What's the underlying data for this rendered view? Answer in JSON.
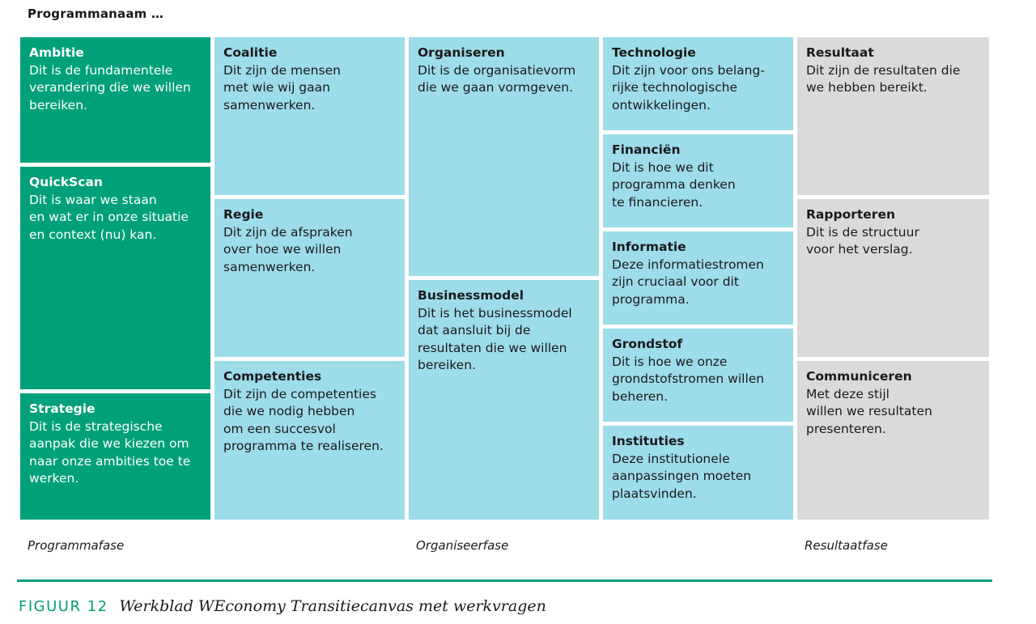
{
  "header": {
    "title": "Programmanaam …"
  },
  "cells": {
    "ambitie": {
      "title": "Ambitie",
      "body": "Dit is de fundamentele\nverandering die we willen\nbereiken."
    },
    "quickscan": {
      "title": "QuickScan",
      "body": "Dit is waar we staan\nen wat er in onze situatie\nen context (nu) kan."
    },
    "strategie": {
      "title": "Strategie",
      "body": "Dit is de strategische\naanpak die we kiezen om\nnaar onze ambities toe te\nwerken."
    },
    "coalitie": {
      "title": "Coalitie",
      "body": "Dit zijn de mensen\nmet wie wij gaan\nsamenwerken."
    },
    "regie": {
      "title": "Regie",
      "body": "Dit zijn de afspraken\nover hoe we willen\nsamenwerken."
    },
    "competenties": {
      "title": "Competenties",
      "body": "Dit zijn de competenties\ndie we nodig hebben\nom een succesvol\nprogramma te realiseren."
    },
    "organiseren": {
      "title": "Organiseren",
      "body": "Dit is de organisatievorm\ndie we gaan vormgeven."
    },
    "businessmodel": {
      "title": "Businessmodel",
      "body": "Dit is het businessmodel\ndat aansluit bij de\nresultaten die we willen\nbereiken."
    },
    "technologie": {
      "title": "Technologie",
      "body": "Dit zijn voor ons belang-\nrijke technologische\nontwikkelingen."
    },
    "financien": {
      "title": "Financiën",
      "body": "Dit is hoe we dit\nprogramma denken\nte financieren."
    },
    "informatie": {
      "title": "Informatie",
      "body": "Deze informatiestromen\nzijn cruciaal voor dit\nprogramma."
    },
    "grondstof": {
      "title": "Grondstof",
      "body": "Dit is hoe we onze\ngrondstofstromen willen\nbeheren."
    },
    "instituties": {
      "title": "Instituties",
      "body": "Deze institutionele\naanpassingen moeten\nplaatsvinden."
    },
    "resultaat": {
      "title": "Resultaat",
      "body": "Dit zijn de resultaten die\nwe hebben bereikt."
    },
    "rapporteren": {
      "title": "Rapporteren",
      "body": "Dit is de structuur\nvoor het verslag."
    },
    "communiceren": {
      "title": "Communiceren",
      "body": "Met deze stijl\nwillen we resultaten\npresenteren."
    }
  },
  "phases": {
    "programmafase": "Programmafase",
    "organiseerfase": "Organiseerfase",
    "resultaatfase": "Resultaatfase"
  },
  "caption": {
    "label": "FIGUUR 12",
    "title": "Werkblad WEconomy Transitiecanvas met werkvragen"
  },
  "colors": {
    "green": "#00a07a",
    "blue": "#9ddce9",
    "grey": "#dadada"
  }
}
